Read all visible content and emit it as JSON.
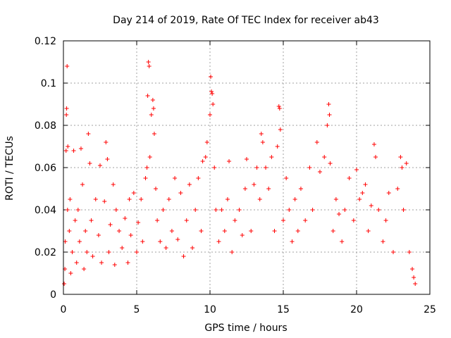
{
  "chart_data": {
    "type": "scatter",
    "title": "Day 214 of 2019, Rate Of TEC Index for receiver ab43",
    "xlabel": "GPS time / hours",
    "ylabel": "ROTI / TECUs",
    "xlim": [
      0,
      25
    ],
    "ylim": [
      0,
      0.12
    ],
    "xticks": [
      0,
      5,
      10,
      15,
      20,
      25
    ],
    "yticks": [
      0,
      0.02,
      0.04,
      0.06,
      0.08,
      0.1,
      0.12
    ],
    "grid": true,
    "marker": "plus",
    "color": "#ff0000",
    "series": [
      {
        "name": "ROTI ab43",
        "points": [
          [
            0.05,
            0.005
          ],
          [
            0.1,
            0.012
          ],
          [
            0.12,
            0.025
          ],
          [
            0.18,
            0.068
          ],
          [
            0.2,
            0.085
          ],
          [
            0.22,
            0.088
          ],
          [
            0.25,
            0.108
          ],
          [
            0.28,
            0.04
          ],
          [
            0.3,
            0.07
          ],
          [
            0.4,
            0.03
          ],
          [
            0.45,
            0.045
          ],
          [
            0.5,
            0.01
          ],
          [
            0.6,
            0.02
          ],
          [
            0.7,
            0.068
          ],
          [
            0.8,
            0.035
          ],
          [
            0.9,
            0.015
          ],
          [
            1.0,
            0.04
          ],
          [
            1.1,
            0.025
          ],
          [
            1.2,
            0.069
          ],
          [
            1.3,
            0.052
          ],
          [
            1.4,
            0.012
          ],
          [
            1.5,
            0.03
          ],
          [
            1.6,
            0.02
          ],
          [
            1.7,
            0.076
          ],
          [
            1.8,
            0.062
          ],
          [
            1.9,
            0.035
          ],
          [
            2.0,
            0.018
          ],
          [
            2.2,
            0.045
          ],
          [
            2.4,
            0.028
          ],
          [
            2.5,
            0.061
          ],
          [
            2.6,
            0.015
          ],
          [
            2.8,
            0.044
          ],
          [
            2.9,
            0.072
          ],
          [
            3.0,
            0.064
          ],
          [
            3.1,
            0.02
          ],
          [
            3.2,
            0.033
          ],
          [
            3.4,
            0.052
          ],
          [
            3.5,
            0.014
          ],
          [
            3.6,
            0.04
          ],
          [
            3.8,
            0.03
          ],
          [
            4.0,
            0.022
          ],
          [
            4.2,
            0.036
          ],
          [
            4.4,
            0.015
          ],
          [
            4.5,
            0.045
          ],
          [
            4.6,
            0.028
          ],
          [
            4.8,
            0.048
          ],
          [
            5.0,
            0.02
          ],
          [
            5.1,
            0.034
          ],
          [
            5.3,
            0.045
          ],
          [
            5.4,
            0.025
          ],
          [
            5.6,
            0.055
          ],
          [
            5.7,
            0.06
          ],
          [
            5.75,
            0.094
          ],
          [
            5.8,
            0.11
          ],
          [
            5.85,
            0.108
          ],
          [
            5.9,
            0.065
          ],
          [
            6.0,
            0.085
          ],
          [
            6.1,
            0.092
          ],
          [
            6.15,
            0.088
          ],
          [
            6.2,
            0.076
          ],
          [
            6.3,
            0.05
          ],
          [
            6.4,
            0.035
          ],
          [
            6.6,
            0.025
          ],
          [
            6.8,
            0.04
          ],
          [
            7.0,
            0.022
          ],
          [
            7.2,
            0.045
          ],
          [
            7.4,
            0.03
          ],
          [
            7.6,
            0.055
          ],
          [
            7.8,
            0.026
          ],
          [
            8.0,
            0.048
          ],
          [
            8.2,
            0.018
          ],
          [
            8.4,
            0.035
          ],
          [
            8.6,
            0.052
          ],
          [
            8.8,
            0.022
          ],
          [
            9.0,
            0.04
          ],
          [
            9.2,
            0.055
          ],
          [
            9.4,
            0.03
          ],
          [
            9.5,
            0.063
          ],
          [
            9.7,
            0.065
          ],
          [
            9.8,
            0.072
          ],
          [
            10.0,
            0.085
          ],
          [
            10.05,
            0.103
          ],
          [
            10.1,
            0.096
          ],
          [
            10.15,
            0.095
          ],
          [
            10.2,
            0.09
          ],
          [
            10.3,
            0.06
          ],
          [
            10.4,
            0.04
          ],
          [
            10.6,
            0.025
          ],
          [
            10.8,
            0.04
          ],
          [
            11.0,
            0.03
          ],
          [
            11.2,
            0.045
          ],
          [
            11.3,
            0.063
          ],
          [
            11.5,
            0.02
          ],
          [
            11.7,
            0.035
          ],
          [
            12.0,
            0.04
          ],
          [
            12.2,
            0.028
          ],
          [
            12.4,
            0.05
          ],
          [
            12.5,
            0.064
          ],
          [
            12.8,
            0.03
          ],
          [
            13.0,
            0.052
          ],
          [
            13.2,
            0.06
          ],
          [
            13.4,
            0.045
          ],
          [
            13.5,
            0.076
          ],
          [
            13.6,
            0.072
          ],
          [
            13.8,
            0.06
          ],
          [
            14.0,
            0.05
          ],
          [
            14.2,
            0.065
          ],
          [
            14.4,
            0.03
          ],
          [
            14.6,
            0.07
          ],
          [
            14.7,
            0.089
          ],
          [
            14.75,
            0.088
          ],
          [
            14.8,
            0.078
          ],
          [
            15.0,
            0.035
          ],
          [
            15.2,
            0.055
          ],
          [
            15.4,
            0.04
          ],
          [
            15.6,
            0.025
          ],
          [
            15.8,
            0.045
          ],
          [
            16.0,
            0.03
          ],
          [
            16.2,
            0.05
          ],
          [
            16.5,
            0.035
          ],
          [
            16.8,
            0.06
          ],
          [
            17.0,
            0.04
          ],
          [
            17.3,
            0.072
          ],
          [
            17.5,
            0.058
          ],
          [
            17.8,
            0.065
          ],
          [
            18.0,
            0.08
          ],
          [
            18.1,
            0.09
          ],
          [
            18.15,
            0.085
          ],
          [
            18.2,
            0.062
          ],
          [
            18.4,
            0.03
          ],
          [
            18.6,
            0.045
          ],
          [
            18.8,
            0.038
          ],
          [
            19.0,
            0.025
          ],
          [
            19.2,
            0.04
          ],
          [
            19.5,
            0.055
          ],
          [
            19.8,
            0.035
          ],
          [
            20.0,
            0.059
          ],
          [
            20.2,
            0.045
          ],
          [
            20.4,
            0.048
          ],
          [
            20.6,
            0.052
          ],
          [
            20.8,
            0.03
          ],
          [
            21.0,
            0.042
          ],
          [
            21.2,
            0.071
          ],
          [
            21.3,
            0.065
          ],
          [
            21.5,
            0.04
          ],
          [
            21.8,
            0.025
          ],
          [
            22.0,
            0.035
          ],
          [
            22.2,
            0.048
          ],
          [
            22.5,
            0.02
          ],
          [
            22.8,
            0.05
          ],
          [
            23.0,
            0.065
          ],
          [
            23.1,
            0.06
          ],
          [
            23.2,
            0.04
          ],
          [
            23.4,
            0.062
          ],
          [
            23.6,
            0.02
          ],
          [
            23.8,
            0.012
          ],
          [
            23.9,
            0.008
          ],
          [
            24.0,
            0.005
          ]
        ]
      }
    ]
  }
}
